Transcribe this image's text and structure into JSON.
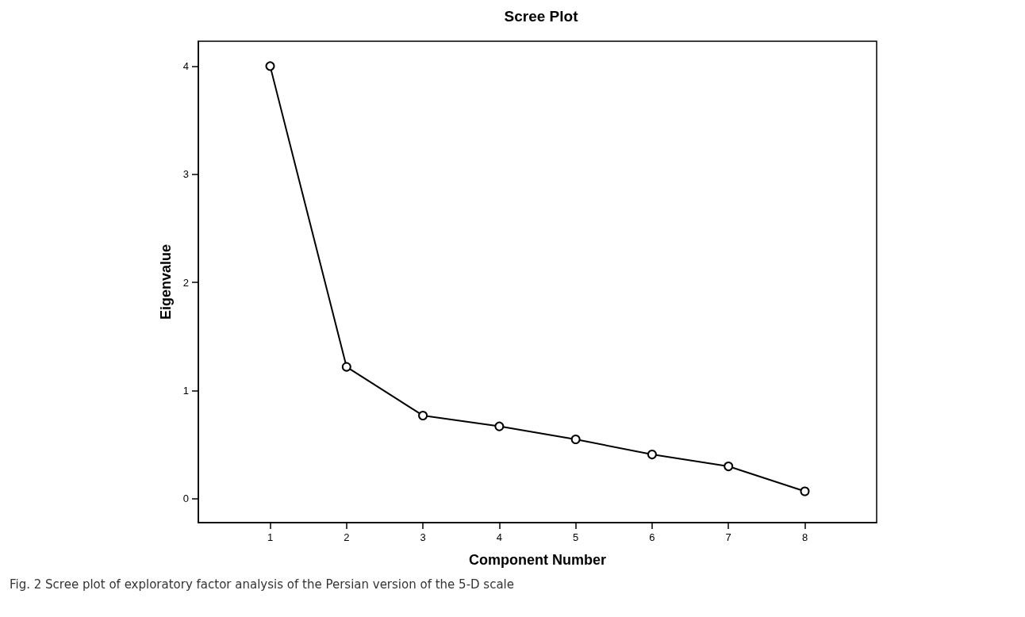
{
  "chart_data": {
    "type": "line",
    "title": "Scree Plot",
    "xlabel": "Component Number",
    "ylabel": "Eigenvalue",
    "x": [
      1,
      2,
      3,
      4,
      5,
      6,
      7,
      8
    ],
    "series": [
      {
        "color": "#000000",
        "values": [
          4.0,
          1.22,
          0.77,
          0.67,
          0.55,
          0.41,
          0.3,
          0.07
        ]
      }
    ],
    "xlim": [
      0.06,
      8.94
    ],
    "xticks": [
      1,
      2,
      3,
      4,
      5,
      6,
      7,
      8
    ],
    "ylim": [
      -0.22,
      4.23
    ],
    "yticks": [
      0,
      1,
      2,
      3,
      4
    ],
    "grid": false,
    "marker": "circle",
    "line_style": "solid",
    "annotations": [
      "Fig. 2 Scree plot of exploratory factor analysis of the Persian version of the 5-D scale"
    ]
  }
}
